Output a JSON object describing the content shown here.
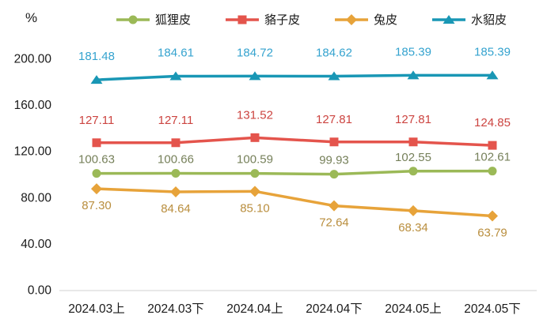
{
  "chart": {
    "unit_label": "%",
    "chart_data": {
      "type": "line",
      "title": "",
      "xlabel": "",
      "ylabel": "%",
      "categories": [
        "2024.03上",
        "2024.03下",
        "2024.04上",
        "2024.04下",
        "2024.05上",
        "2024.05下"
      ],
      "yticks": [
        "0.00",
        "40.00",
        "80.00",
        "120.00",
        "160.00",
        "200.00"
      ],
      "ytick_values": [
        0,
        40,
        80,
        120,
        160,
        200
      ],
      "ylim": [
        0,
        200
      ],
      "grid": false,
      "legend_position": "top",
      "axis_color": "#d9d9d9",
      "tick_text_color": "#1a1a1a",
      "series": [
        {
          "name": "狐狸皮",
          "marker": "circle",
          "color": "#9bb957",
          "label_color": "#76805a",
          "values": [
            100.63,
            100.66,
            100.59,
            99.93,
            102.55,
            102.61
          ]
        },
        {
          "name": "貉子皮",
          "marker": "square",
          "color": "#e4544c",
          "label_color": "#cc4440",
          "values": [
            127.11,
            127.11,
            131.52,
            127.81,
            127.81,
            124.85
          ]
        },
        {
          "name": "兔皮",
          "marker": "diamond",
          "color": "#e7a33a",
          "label_color": "#b98e3e",
          "values": [
            87.3,
            84.64,
            85.1,
            72.64,
            68.34,
            63.79
          ]
        },
        {
          "name": "水貂皮",
          "marker": "triangle",
          "color": "#1997b5",
          "label_color": "#35a3cf",
          "values": [
            181.48,
            184.61,
            184.72,
            184.62,
            185.39,
            185.39
          ]
        }
      ]
    }
  }
}
